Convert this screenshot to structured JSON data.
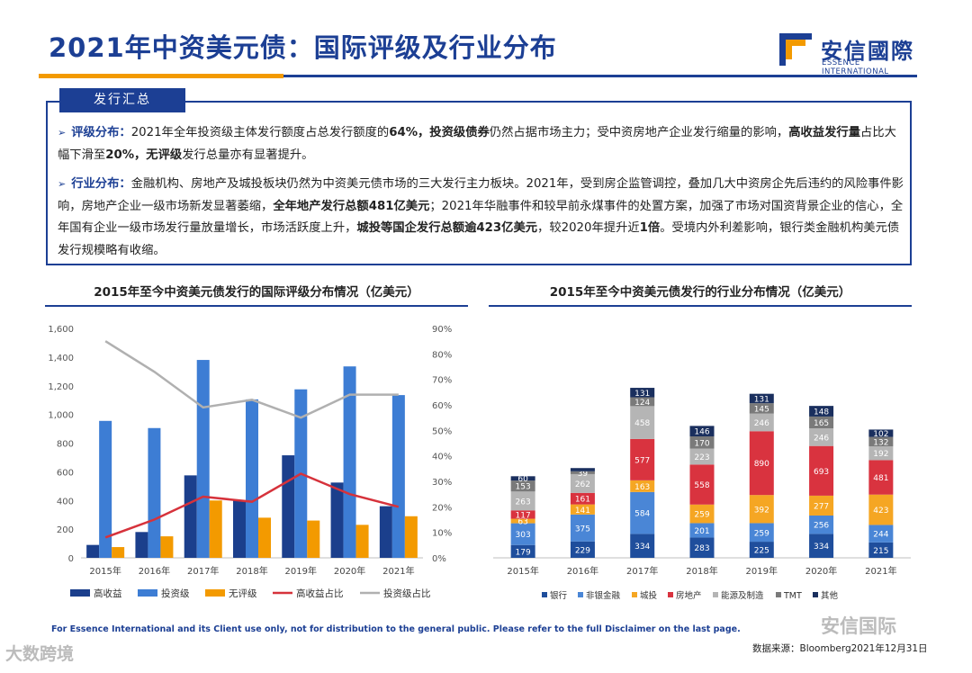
{
  "header": {
    "title": "2021年中资美元债：国际评级及行业分布",
    "logo_cn": "安信國際",
    "logo_en": "ESSENCE INTERNATIONAL"
  },
  "summary": {
    "tab_label": "发行汇总",
    "p1": {
      "label": "评级分布：",
      "t1": "2021年全年投资级主体发行额度占总发行额度的",
      "b1": "64%，投资级债券",
      "t2": "仍然占据市场主力；受中资房地产企业发行缩量的影响，",
      "b2": "高收益发行量",
      "t3": "占比大幅下滑至",
      "b3": "20%，无评级",
      "t4": "发行总量亦有显著提升。"
    },
    "p2": {
      "label": "行业分布：",
      "t1": "金融机构、房地产及城投板块仍然为中资美元债市场的三大发行主力板块。2021年，受到房企监管调控，叠加几大中资房企先后违约的风险事件影响，房地产企业一级市场新发显著萎缩，",
      "b1": "全年地产发行总额481亿美元",
      "t2": "；2021年华融事件和较早前永煤事件的处置方案，加强了市场对国资背景企业的信心，全年国有企业一级市场发行量放量增长，市场活跃度上升，",
      "b2": "城投等国企发行总额逾423亿美元",
      "t3": "，较2020年提升近",
      "b3": "1倍",
      "t4": "。受境内外利差影响，银行类金融机构美元债发行规模略有收缩。"
    }
  },
  "chart_data": [
    {
      "type": "bar",
      "title": "2015年至今中资美元债发行的国际评级分布情况（亿美元）",
      "categories": [
        "2015年",
        "2016年",
        "2017年",
        "2018年",
        "2019年",
        "2020年",
        "2021年"
      ],
      "series": [
        {
          "name": "高收益",
          "kind": "bar",
          "color": "#1b3f8c",
          "values": [
            90,
            180,
            575,
            400,
            715,
            525,
            360
          ]
        },
        {
          "name": "投资级",
          "kind": "bar",
          "color": "#3d7dd4",
          "values": [
            955,
            905,
            1380,
            1105,
            1175,
            1335,
            1135
          ]
        },
        {
          "name": "无评级",
          "kind": "bar",
          "color": "#f39a00",
          "values": [
            75,
            150,
            400,
            280,
            260,
            230,
            290
          ]
        },
        {
          "name": "高收益占比",
          "kind": "line",
          "axis": "right",
          "color": "#d6323b",
          "values": [
            8,
            15,
            24,
            22,
            33,
            25,
            20
          ]
        },
        {
          "name": "投资级占比",
          "kind": "line",
          "axis": "right",
          "color": "#b0b0b0",
          "values": [
            85,
            73,
            59,
            62,
            55,
            64,
            64
          ]
        }
      ],
      "ylim": [
        0,
        1600
      ],
      "yticks": [
        "0",
        "200",
        "400",
        "600",
        "800",
        "1,000",
        "1,200",
        "1,400",
        "1,600"
      ],
      "y2lim": [
        0,
        90
      ],
      "y2ticks": [
        "0%",
        "10%",
        "20%",
        "30%",
        "40%",
        "50%",
        "60%",
        "70%",
        "80%",
        "90%"
      ]
    },
    {
      "type": "bar",
      "stacked": true,
      "title": "2015年至今中资美元债发行的行业分布情况（亿美元）",
      "categories": [
        "2015年",
        "2016年",
        "2017年",
        "2018年",
        "2019年",
        "2020年",
        "2021年"
      ],
      "series": [
        {
          "name": "银行",
          "color": "#1f4e9c",
          "values": [
            179,
            229,
            334,
            283,
            225,
            334,
            215
          ]
        },
        {
          "name": "非银金融",
          "color": "#4a86d6",
          "values": [
            303,
            375,
            584,
            201,
            259,
            256,
            244
          ]
        },
        {
          "name": "城投",
          "color": "#f5a623",
          "values": [
            63,
            141,
            163,
            259,
            392,
            277,
            423
          ]
        },
        {
          "name": "房地产",
          "color": "#d9333f",
          "values": [
            117,
            161,
            577,
            558,
            890,
            693,
            481
          ]
        },
        {
          "name": "能源及制造",
          "color": "#b5b5b5",
          "values": [
            263,
            262,
            458,
            223,
            246,
            246,
            192
          ]
        },
        {
          "name": "TMT",
          "color": "#7a7a7a",
          "values": [
            153,
            39,
            124,
            170,
            145,
            165,
            132
          ]
        },
        {
          "name": "其他",
          "color": "#1a2f5e",
          "values": [
            60,
            45,
            131,
            146,
            131,
            148,
            102
          ]
        }
      ],
      "labels": [
        [
          "179",
          "303",
          "63",
          "117",
          "263",
          "153",
          "60"
        ],
        [
          "229",
          "375",
          "141",
          "161",
          "262",
          "39",
          ""
        ],
        [
          "334",
          "584",
          "163",
          "577",
          "458",
          "124",
          "131"
        ],
        [
          "283",
          "201",
          "259",
          "558",
          "223",
          "170",
          "146"
        ],
        [
          "225",
          "259",
          "392",
          "890",
          "246",
          "145",
          "131"
        ],
        [
          "334",
          "256",
          "277",
          "693",
          "246",
          "165",
          "148"
        ],
        [
          "215",
          "244",
          "423",
          "481",
          "192",
          "132",
          "102"
        ]
      ],
      "ylim": [
        0,
        3200
      ]
    }
  ],
  "footer": {
    "disclaimer": "For Essence International and its Client use only, not for distribution to the general public. Please refer to the full Disclaimer on the last page.",
    "source": "数据来源：Bloomberg2021年12月31日",
    "watermark_left": "大数跨境",
    "watermark_right": "安信国际"
  }
}
